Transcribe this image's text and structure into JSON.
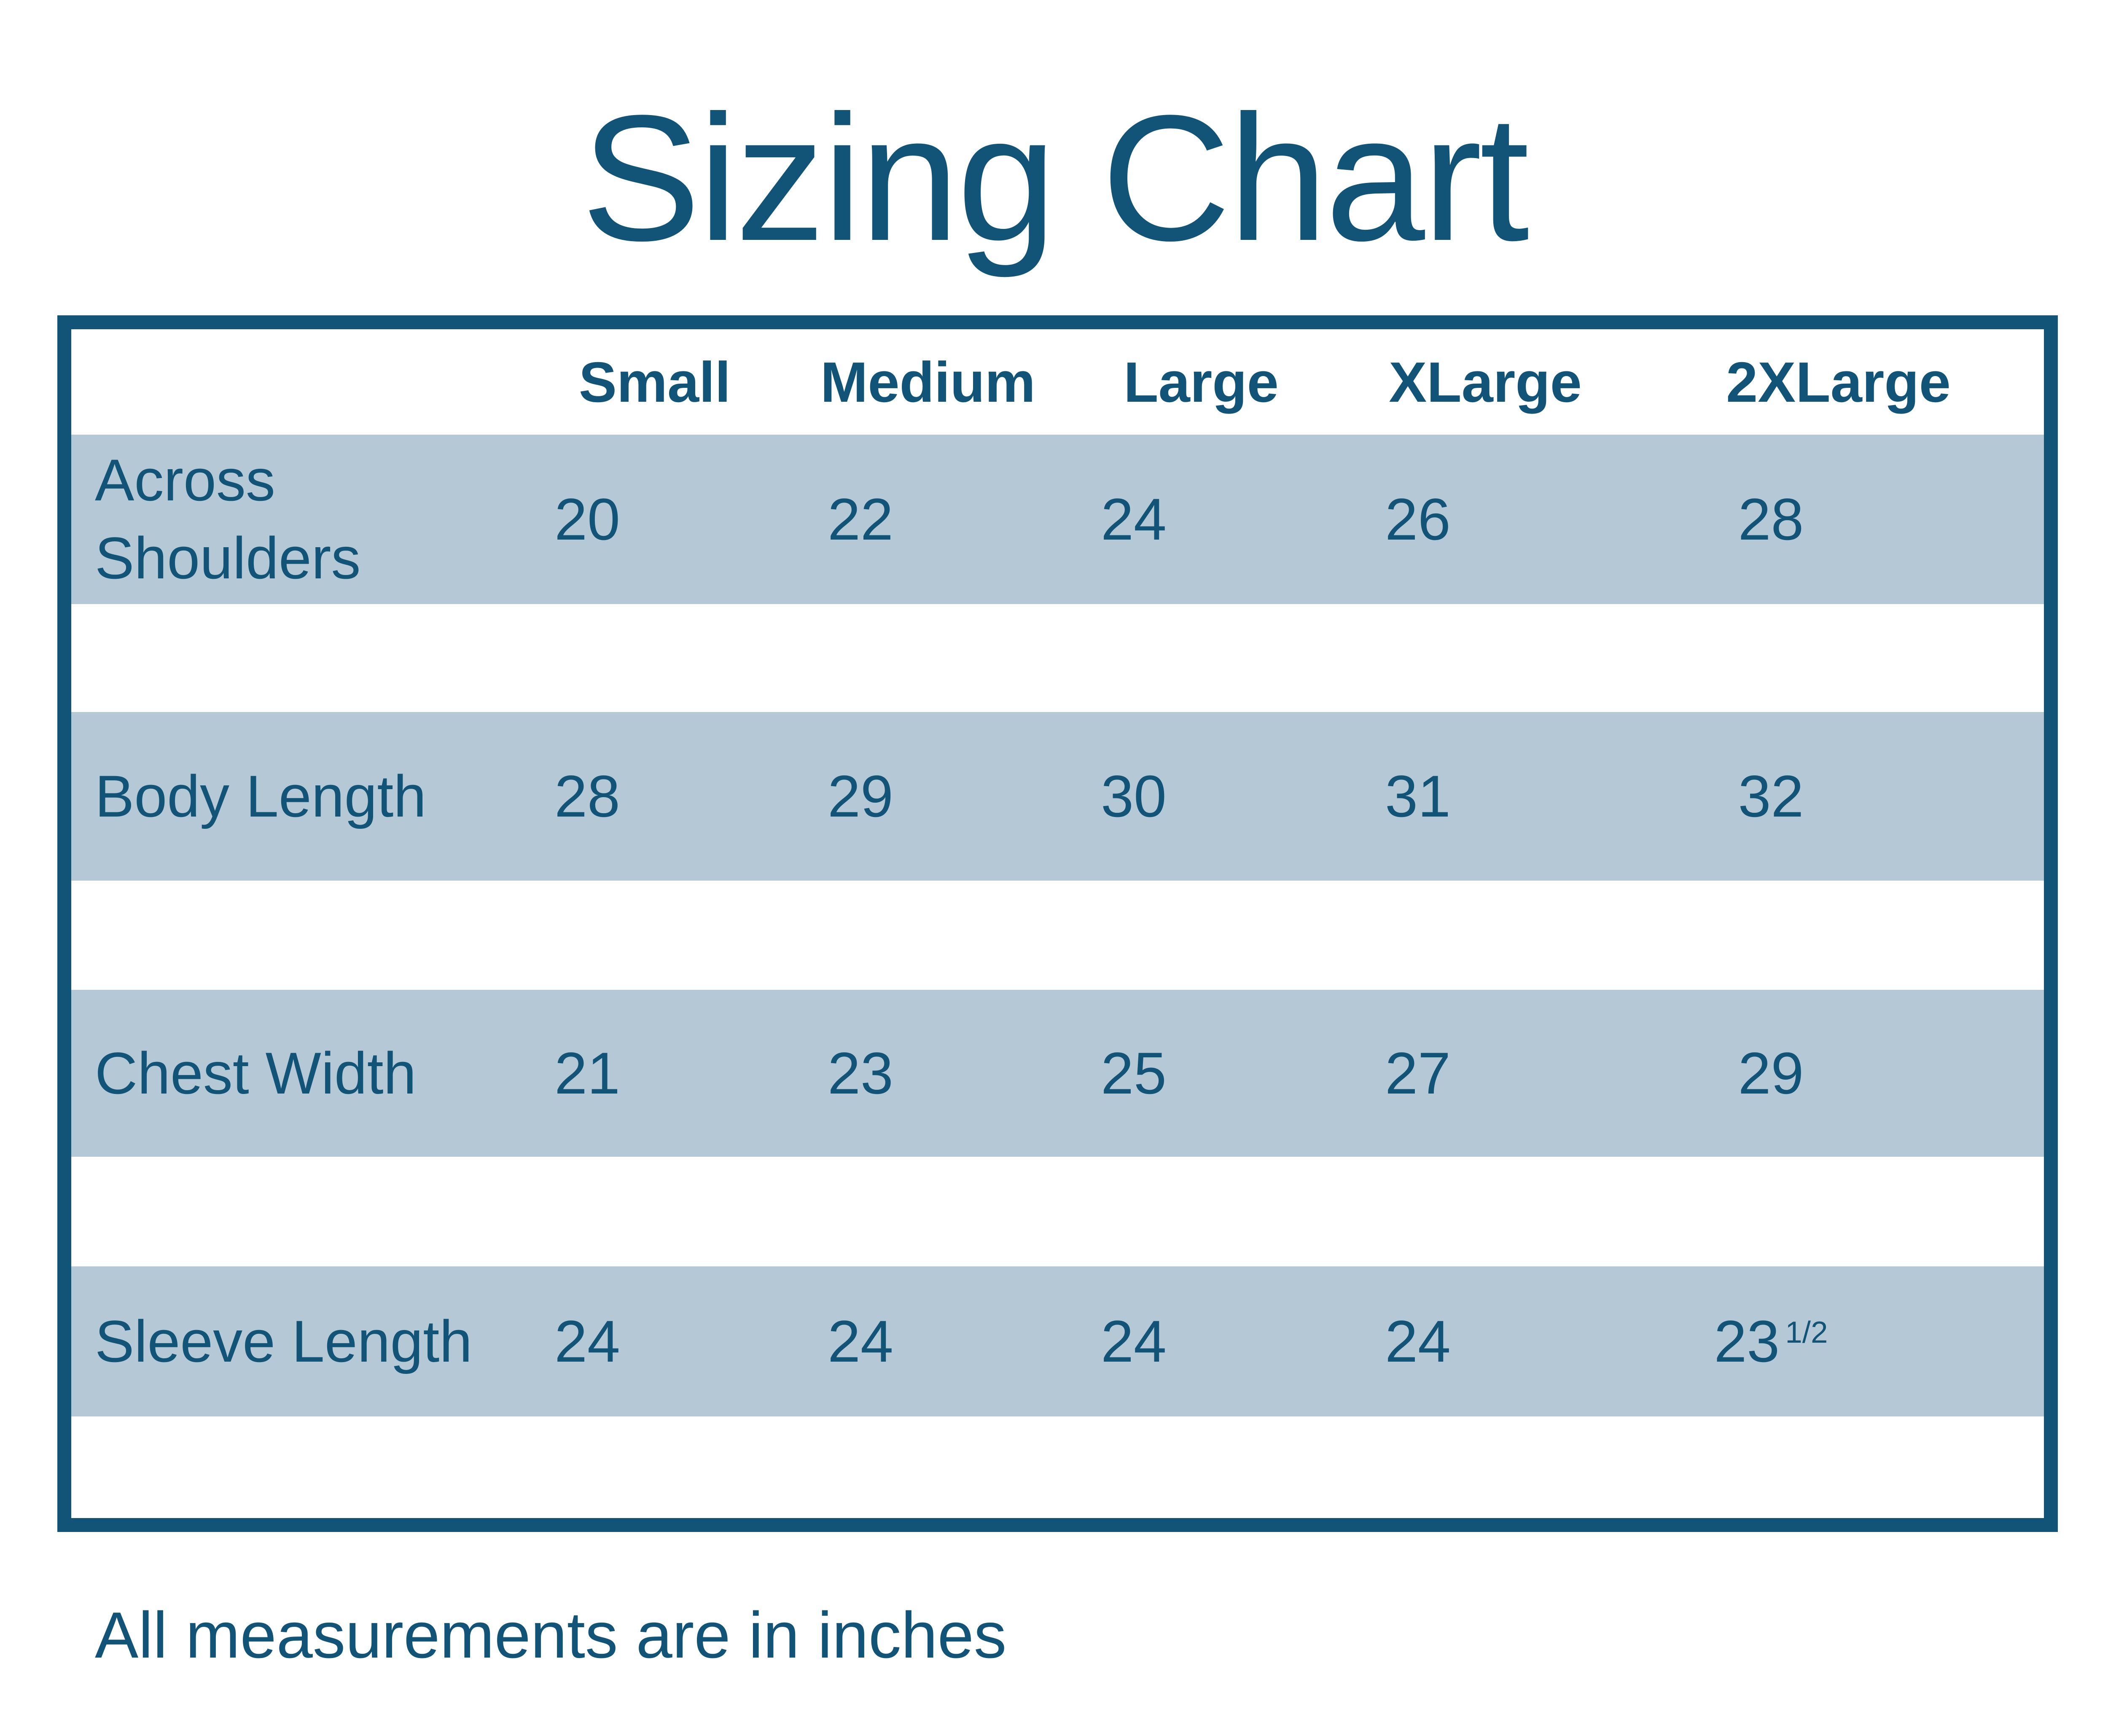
{
  "title": "Sizing Chart",
  "table": {
    "size_headers": [
      "Small",
      "Medium",
      "Large",
      "XLarge",
      "2XLarge"
    ],
    "rows": [
      {
        "label": "Across Shoulders",
        "values": [
          "20",
          "22",
          "24",
          "26",
          "28"
        ]
      },
      {
        "label": "Body Length",
        "values": [
          "28",
          "29",
          "30",
          "31",
          "32"
        ]
      },
      {
        "label": "Chest Width",
        "values": [
          "21",
          "23",
          "25",
          "27",
          "29"
        ]
      },
      {
        "label": "Sleeve Length",
        "values": [
          "24",
          "24",
          "24",
          "24",
          "23"
        ],
        "last_value_superscript": "1/2"
      }
    ]
  },
  "footer": {
    "note": "All measurements are in inches"
  },
  "colors": {
    "dark_blue": "#115478",
    "light_blue_row": "#b4c9d5",
    "background": "#ffffff"
  },
  "chart_data": {
    "type": "table",
    "title": "Sizing Chart",
    "columns": [
      "",
      "Small",
      "Medium",
      "Large",
      "XLarge",
      "2XLarge"
    ],
    "rows": [
      [
        "Across Shoulders",
        20,
        22,
        24,
        26,
        28
      ],
      [
        "Body Length",
        28,
        29,
        30,
        31,
        32
      ],
      [
        "Chest Width",
        21,
        23,
        25,
        27,
        29
      ],
      [
        "Sleeve Length",
        24,
        24,
        24,
        24,
        23.5
      ]
    ],
    "note": "All measurements are in inches"
  }
}
